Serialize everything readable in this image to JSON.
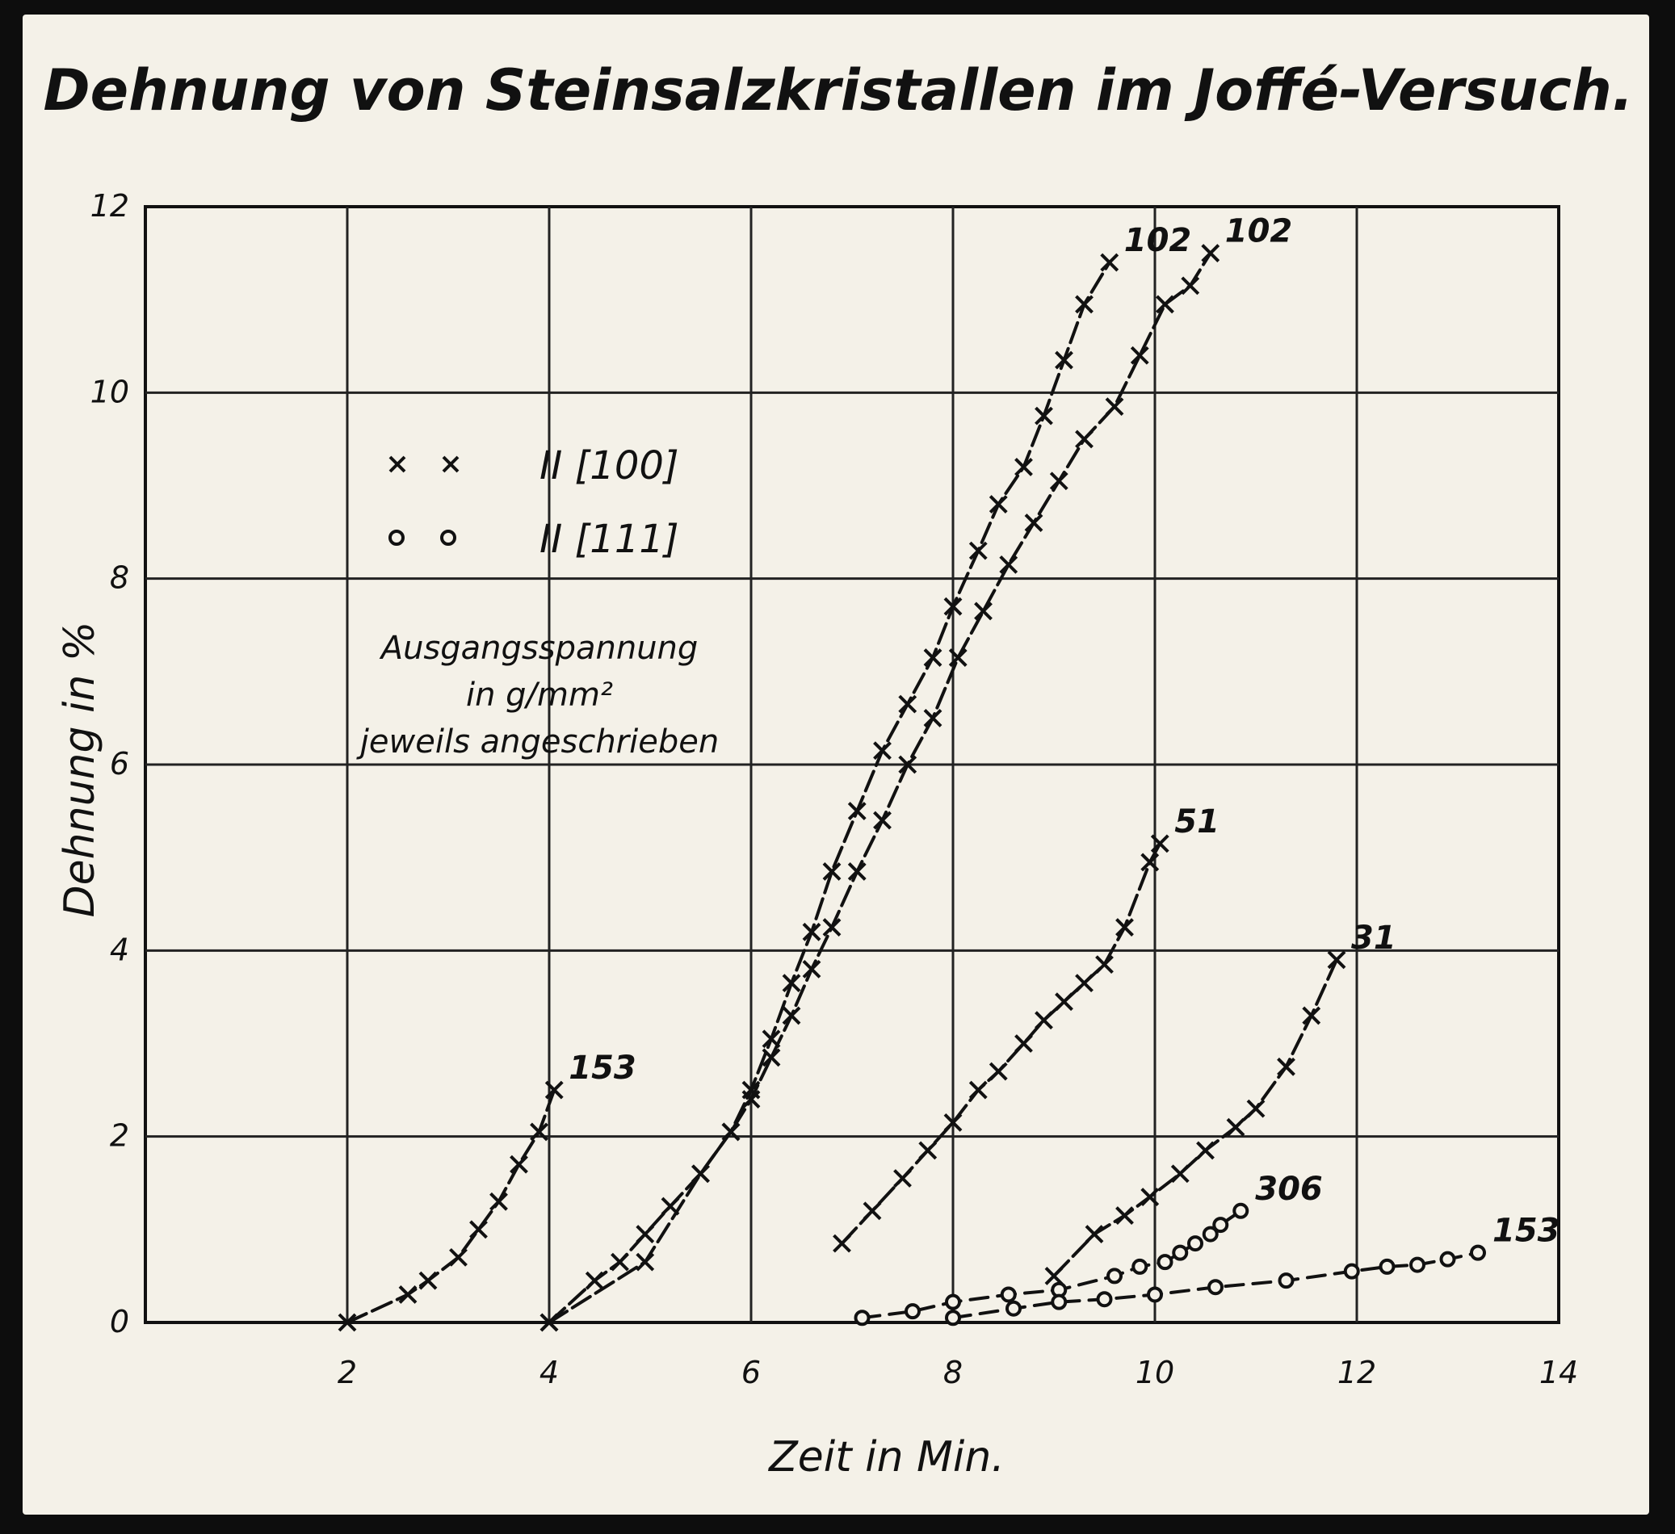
{
  "chart_data": {
    "type": "line",
    "title": "Dehnung von Steinsalzkristallen im Joffé-Versuch.",
    "xlabel": "Zeit in Min.",
    "ylabel": "Dehnung in %",
    "xlim": [
      0,
      14
    ],
    "ylim": [
      0,
      12
    ],
    "xticks": [
      2,
      4,
      6,
      8,
      10,
      12,
      14
    ],
    "yticks": [
      0,
      2,
      4,
      6,
      8,
      10,
      12
    ],
    "grid": true,
    "legend": [
      {
        "marker": "x",
        "label": "II [100]"
      },
      {
        "marker": "o",
        "label": "II [111]"
      }
    ],
    "annotation_lines": [
      "Ausgangsspannung",
      "in g/mm²",
      "jeweils angeschrieben"
    ],
    "series": [
      {
        "orientation": "[100]",
        "marker": "x",
        "label": "153",
        "x": [
          2.0,
          2.6,
          2.8,
          3.1,
          3.3,
          3.5,
          3.7,
          3.9,
          4.05
        ],
        "y": [
          0.0,
          0.3,
          0.45,
          0.7,
          1.0,
          1.3,
          1.7,
          2.05,
          2.5
        ]
      },
      {
        "orientation": "[100]",
        "marker": "x",
        "label": "102",
        "x": [
          4.0,
          4.45,
          4.7,
          4.95,
          5.2,
          5.5,
          5.8,
          6.0,
          6.2,
          6.4,
          6.6,
          6.8,
          7.05,
          7.3,
          7.55,
          7.8,
          8.0,
          8.25,
          8.45,
          8.7,
          8.9,
          9.1,
          9.3,
          9.55
        ],
        "y": [
          0.0,
          0.45,
          0.65,
          0.95,
          1.25,
          1.6,
          2.05,
          2.5,
          3.05,
          3.65,
          4.2,
          4.85,
          5.5,
          6.15,
          6.65,
          7.15,
          7.7,
          8.3,
          8.8,
          9.2,
          9.75,
          10.35,
          10.95,
          11.4
        ],
        "end_label_x": 9.55,
        "end_label_y": 11.4
      },
      {
        "orientation": "[100]",
        "marker": "x",
        "label": "102",
        "x": [
          4.0,
          4.95,
          5.5,
          5.8,
          6.0,
          6.2,
          6.4,
          6.6,
          6.8,
          7.05,
          7.3,
          7.55,
          7.8,
          8.05,
          8.3,
          8.55,
          8.8,
          9.05,
          9.3,
          9.6,
          9.85,
          10.1,
          10.35,
          10.55
        ],
        "y": [
          0.0,
          0.65,
          1.6,
          2.05,
          2.4,
          2.85,
          3.3,
          3.8,
          4.25,
          4.85,
          5.4,
          6.0,
          6.5,
          7.15,
          7.65,
          8.15,
          8.6,
          9.05,
          9.5,
          9.85,
          10.4,
          10.95,
          11.15,
          11.5
        ],
        "end_label_x": 10.55,
        "end_label_y": 11.5
      },
      {
        "orientation": "[100]",
        "marker": "x",
        "label": "51",
        "x": [
          6.9,
          7.2,
          7.5,
          7.75,
          8.0,
          8.25,
          8.45,
          8.7,
          8.9,
          9.1,
          9.3,
          9.5,
          9.7,
          9.95,
          10.05
        ],
        "y": [
          0.85,
          1.2,
          1.55,
          1.85,
          2.15,
          2.5,
          2.7,
          3.0,
          3.25,
          3.45,
          3.65,
          3.85,
          4.25,
          4.95,
          5.15
        ],
        "end_label_x": 10.05,
        "end_label_y": 5.15
      },
      {
        "orientation": "[100]",
        "marker": "x",
        "label": "31",
        "x": [
          9.0,
          9.4,
          9.7,
          9.95,
          10.25,
          10.5,
          10.8,
          11.0,
          11.3,
          11.55,
          11.8
        ],
        "y": [
          0.5,
          0.95,
          1.15,
          1.35,
          1.6,
          1.85,
          2.1,
          2.3,
          2.75,
          3.3,
          3.9
        ],
        "end_label_x": 11.8,
        "end_label_y": 3.9
      },
      {
        "orientation": "[111]",
        "marker": "o",
        "label": "306",
        "x": [
          7.1,
          7.6,
          8.0,
          8.55,
          9.05,
          9.6,
          9.85,
          10.1,
          10.25,
          10.4,
          10.55,
          10.65,
          10.85
        ],
        "y": [
          0.05,
          0.12,
          0.22,
          0.3,
          0.35,
          0.5,
          0.6,
          0.65,
          0.75,
          0.85,
          0.95,
          1.05,
          1.2
        ],
        "end_label_x": 10.85,
        "end_label_y": 1.2
      },
      {
        "orientation": "[111]",
        "marker": "o",
        "label": "153",
        "x": [
          8.0,
          8.6,
          9.05,
          9.5,
          10.0,
          10.6,
          11.3,
          11.95,
          12.3,
          12.6,
          12.9,
          13.2
        ],
        "y": [
          0.05,
          0.15,
          0.22,
          0.25,
          0.3,
          0.38,
          0.45,
          0.55,
          0.6,
          0.62,
          0.68,
          0.75
        ],
        "end_label_x": 13.2,
        "end_label_y": 0.75
      }
    ]
  }
}
